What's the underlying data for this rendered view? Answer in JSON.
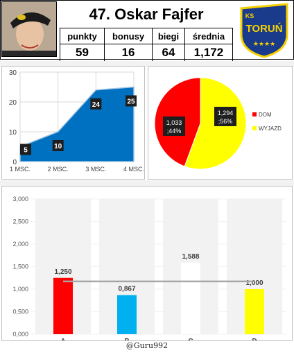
{
  "header": {
    "title": "47. Oskar Fajfer",
    "stats": [
      {
        "label": "punkty",
        "value": "59"
      },
      {
        "label": "bonusy",
        "value": "16"
      },
      {
        "label": "biegi",
        "value": "64"
      },
      {
        "label": "średnia",
        "value": "1,172"
      }
    ],
    "logo_text": "TORUŃ",
    "logo_small": "KS",
    "logo_stars": "★★★★"
  },
  "footer": {
    "credit": "@Guru992"
  },
  "colors": {
    "area_fill": "#0070c0",
    "dom": "#ff0000",
    "wyjazd": "#ffff00",
    "bar_a": "#ff0000",
    "bar_b": "#00b0f0",
    "bar_c": "#ffffff",
    "bar_d": "#ffff00",
    "avg_line": "#a6a6a6"
  },
  "chart_data": [
    {
      "type": "area",
      "categories": [
        "1 MSC.",
        "2 MSC.",
        "3 MSC.",
        "4 MSC."
      ],
      "values": [
        5,
        10,
        24,
        25
      ],
      "data_labels": [
        "5",
        "10",
        "24",
        "25"
      ],
      "yticks": [
        "0",
        "10",
        "20",
        "30"
      ],
      "ylim": [
        0,
        30
      ],
      "grid": true
    },
    {
      "type": "pie",
      "labels": [
        "DOM",
        "WYJAZD"
      ],
      "values": [
        1.033,
        1.294
      ],
      "percent": [
        44,
        56
      ],
      "data_labels": [
        [
          "1,033",
          ";44%"
        ],
        [
          "1,294",
          ";56%"
        ]
      ],
      "legend": "right"
    },
    {
      "type": "bar",
      "categories": [
        "A",
        "B",
        "C",
        "D"
      ],
      "values": [
        1.25,
        0.867,
        1.588,
        1.0
      ],
      "data_labels": [
        "1,250",
        "0,867",
        "1,588",
        "1,000"
      ],
      "reference_line": 1.172,
      "yticks": [
        "0,000",
        "0,500",
        "1,000",
        "1,500",
        "2,000",
        "2,500",
        "3,000"
      ],
      "ylim": [
        0,
        3
      ],
      "grid": true
    }
  ]
}
